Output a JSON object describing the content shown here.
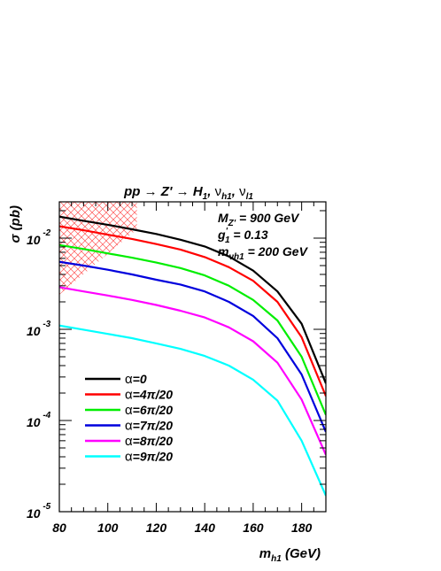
{
  "chart_data": {
    "type": "line",
    "title_parts": [
      "pp",
      "→",
      "Z'",
      "→",
      "H",
      "1",
      ",",
      "ν",
      "h1",
      ",",
      "ν",
      "l1"
    ],
    "xlabel_parts": [
      "m",
      "h1",
      " (GeV)"
    ],
    "ylabel": "σ (pb)",
    "xlim": [
      80,
      190
    ],
    "ylim": [
      1e-05,
      0.025
    ],
    "yscale": "log",
    "x_ticks": [
      80,
      100,
      120,
      140,
      160,
      180
    ],
    "x_tick_labels": [
      "80",
      "100",
      "120",
      "140",
      "160",
      "180"
    ],
    "y_ticks": [
      {
        "base": "10",
        "exp": "-5",
        "value": 1e-05
      },
      {
        "base": "10",
        "exp": "-4",
        "value": 0.0001
      },
      {
        "base": "10",
        "exp": "-3",
        "value": 0.001
      },
      {
        "base": "10",
        "exp": "-2",
        "value": 0.01
      }
    ],
    "annotations": [
      {
        "main": "M",
        "sub": "Z'",
        "rest": " = 900 GeV"
      },
      {
        "main": "g",
        "sub": "1",
        "sup": "'",
        "rest": " = 0.13"
      },
      {
        "main": "m",
        "sub": "νh1",
        "rest": " = 200 GeV"
      }
    ],
    "excluded_region": {
      "description": "hatched",
      "x": [
        80,
        112
      ],
      "y_top": 0.025,
      "y_bottom_at_80": 0.0024,
      "y_bottom_at_112": 0.0125
    },
    "x": [
      80,
      90,
      100,
      110,
      120,
      130,
      140,
      150,
      160,
      170,
      180,
      190
    ],
    "series": [
      {
        "name": "α=0",
        "greek": "α",
        "rest": "=0",
        "color": "#000000",
        "values": [
          0.0172,
          0.0155,
          0.014,
          0.0125,
          0.0111,
          0.0096,
          0.0081,
          0.0063,
          0.0044,
          0.0026,
          0.00115,
          0.000255
        ]
      },
      {
        "name": "α=4π/20",
        "greek": "α",
        "rest": "=4π/20",
        "color": "#ff0000",
        "values": [
          0.0135,
          0.0122,
          0.0109,
          0.0098,
          0.0086,
          0.0075,
          0.0062,
          0.0048,
          0.0034,
          0.002,
          0.00082,
          0.000185
        ]
      },
      {
        "name": "α=6π/20",
        "greek": "α",
        "rest": "=6π/20",
        "color": "#00ee00",
        "values": [
          0.0084,
          0.0076,
          0.0068,
          0.0061,
          0.0054,
          0.0047,
          0.0039,
          0.003,
          0.0021,
          0.00125,
          0.0005,
          0.000115
        ]
      },
      {
        "name": "α=7π/20",
        "greek": "α",
        "rest": "=7π/20",
        "color": "#0000dd",
        "values": [
          0.0055,
          0.005,
          0.0045,
          0.004,
          0.0035,
          0.0031,
          0.0026,
          0.002,
          0.0014,
          0.0008,
          0.00032,
          7.5e-05
        ]
      },
      {
        "name": "α=8π/20",
        "greek": "α",
        "rest": "=8π/20",
        "color": "#ff00ff",
        "values": [
          0.0029,
          0.0026,
          0.00235,
          0.0021,
          0.00185,
          0.0016,
          0.00135,
          0.00105,
          0.00074,
          0.00043,
          0.00017,
          4.2e-05
        ]
      },
      {
        "name": "α=9π/20",
        "greek": "α",
        "rest": "=9π/20",
        "color": "#00ffff",
        "values": [
          0.0011,
          0.00099,
          0.00089,
          0.0008,
          0.0007,
          0.00061,
          0.00051,
          0.0004,
          0.00028,
          0.000165,
          6e-05,
          1.5e-05
        ]
      }
    ],
    "legend": "lower-left",
    "grid": false
  }
}
